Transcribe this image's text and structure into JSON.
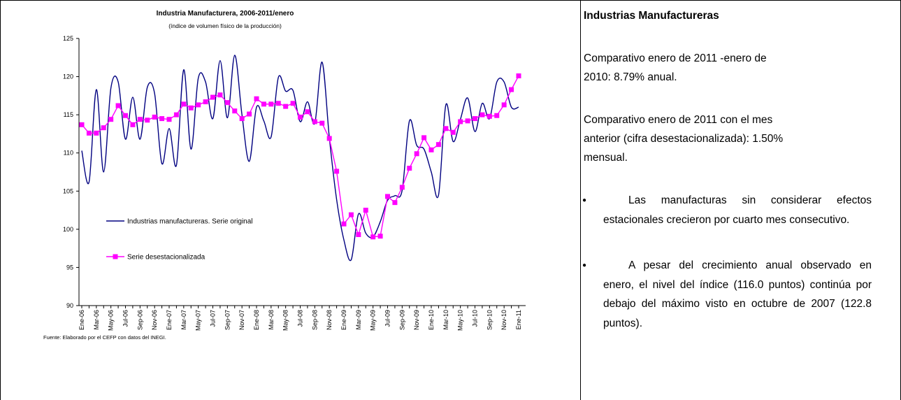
{
  "chart_data": {
    "type": "line",
    "title": "Industria Manufacturera, 2006-2011/enero",
    "subtitle": "(índice de volumen físico de la producción)",
    "source": "Fuente: Elaborado por el CEFP con datos del INEGI.",
    "categories": [
      "Ene-06",
      null,
      "Mar-06",
      null,
      "May-06",
      null,
      "Jul-06",
      null,
      "Sep-06",
      null,
      "Nov-06",
      null,
      "Ene-07",
      null,
      "Mar-07",
      null,
      "May-07",
      null,
      "Jul-07",
      null,
      "Sep-07",
      null,
      "Nov-07",
      null,
      "Ene-08",
      null,
      "Mar-08",
      null,
      "May-08",
      null,
      "Jul-08",
      null,
      "Sep-08",
      null,
      "Nov-08",
      null,
      "Ene-09",
      null,
      "Mar-09",
      null,
      "May-09",
      null,
      "Jul-09",
      null,
      "Sep-09",
      null,
      "Nov-09",
      null,
      "Ene-10",
      null,
      "Mar-10",
      null,
      "May-10",
      null,
      "Jul-10",
      null,
      "Sep-10",
      null,
      "Nov-10",
      null,
      "Ene-11"
    ],
    "series": [
      {
        "name": "Industrias manufactureras. Serie original",
        "color": "#000080",
        "smooth": true,
        "marker": null,
        "values": [
          110.3,
          106.2,
          118.3,
          107.5,
          118.5,
          119.3,
          111.8,
          117.3,
          111.8,
          118.6,
          117.8,
          108.6,
          113.2,
          108.4,
          120.9,
          110.5,
          119.8,
          119.3,
          114.5,
          122.1,
          114.6,
          122.8,
          115.0,
          108.9,
          116.0,
          114.2,
          112.1,
          119.9,
          118.1,
          118.2,
          114.1,
          116.7,
          113.9,
          121.9,
          112.0,
          103.9,
          98.6,
          96.0,
          102.0,
          99.5,
          99.0,
          101.0,
          103.8,
          104.4,
          105.1,
          114.2,
          111.0,
          110.5,
          107.5,
          104.5,
          116.3,
          111.5,
          114.4,
          117.2,
          112.8,
          116.5,
          114.5,
          119.3,
          119.3,
          116.0,
          116.0
        ]
      },
      {
        "name": "Serie desestacionalizada",
        "color": "#ff00ff",
        "smooth": false,
        "marker": "square",
        "values": [
          113.7,
          112.6,
          112.6,
          113.3,
          114.4,
          116.2,
          114.9,
          113.7,
          114.4,
          114.3,
          114.7,
          114.5,
          114.4,
          115.0,
          116.4,
          115.9,
          116.3,
          116.7,
          117.3,
          117.6,
          116.6,
          115.5,
          114.5,
          115.1,
          117.1,
          116.4,
          116.4,
          116.5,
          116.1,
          116.5,
          114.7,
          115.4,
          114.1,
          113.9,
          111.9,
          107.6,
          100.7,
          101.9,
          99.3,
          102.5,
          99.0,
          99.1,
          104.3,
          103.5,
          105.5,
          108.0,
          109.9,
          112.0,
          110.4,
          111.1,
          113.2,
          112.7,
          114.1,
          114.2,
          114.5,
          115.0,
          114.8,
          114.9,
          116.3,
          118.3,
          120.1
        ]
      }
    ],
    "ylim": [
      90,
      125
    ],
    "yticks": [
      90,
      95,
      100,
      105,
      110,
      115,
      120,
      125
    ],
    "grid": false,
    "legend": "left"
  },
  "panel": {
    "title": "Industrias Manufactureras",
    "paragraphs": [
      [
        "Comparativo enero de 2011 -enero de",
        "2010: 8.79% anual."
      ],
      [
        "Comparativo enero de 2011 con el mes",
        "anterior (cifra desestacionalizada): 1.50%",
        "mensual."
      ]
    ],
    "bullets": [
      "Las manufacturas sin considerar efectos estacionales crecieron por cuarto mes consecutivo.",
      "A pesar del crecimiento anual observado en enero, el nivel del índice (116.0 puntos) continúa por debajo del máximo visto en octubre de 2007 (122.8 puntos)."
    ]
  }
}
